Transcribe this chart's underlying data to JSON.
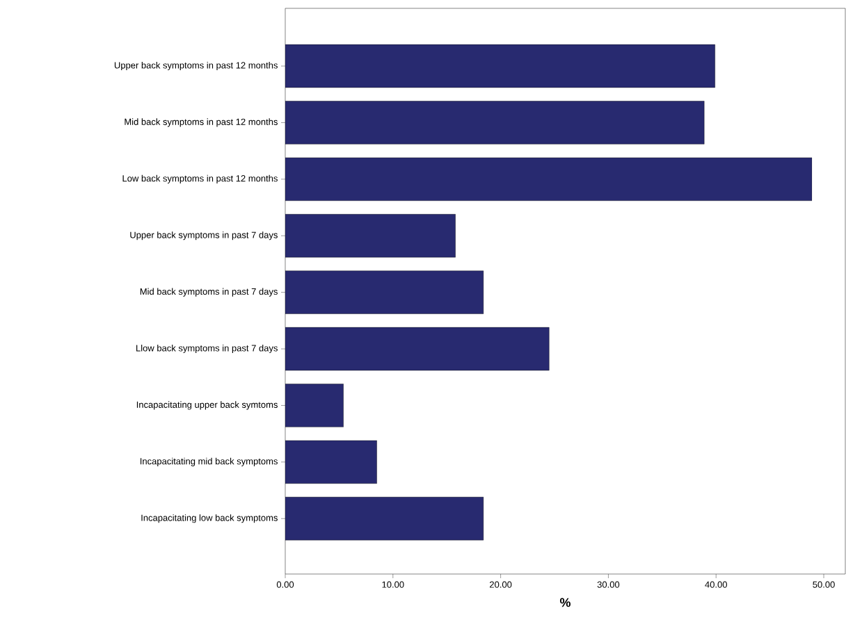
{
  "chart_data": {
    "type": "bar",
    "orientation": "horizontal",
    "xlabel": "%",
    "categories": [
      "Upper back symptoms in past 12 months",
      "Mid back symptoms in past 12 months",
      "Low back symptoms in past 12 months",
      "Upper back symptoms in past 7 days",
      "Mid back symptoms in past 7 days",
      "Llow back symptoms in past 7 days",
      "Incapacitating upper back symtoms",
      "Incapacitating mid back symptoms",
      "Incapacitating low back symptoms"
    ],
    "values": [
      39.9,
      38.9,
      48.9,
      15.8,
      18.4,
      24.5,
      5.4,
      8.5,
      18.4
    ],
    "color": "#282a70",
    "xlim": [
      0,
      52
    ],
    "xticks": [
      {
        "value": 0,
        "label": "0.00"
      },
      {
        "value": 10,
        "label": "10.00"
      },
      {
        "value": 20,
        "label": "20.00"
      },
      {
        "value": 30,
        "label": "30.00"
      },
      {
        "value": 40,
        "label": "40.00"
      },
      {
        "value": 50,
        "label": "50.00"
      }
    ]
  }
}
